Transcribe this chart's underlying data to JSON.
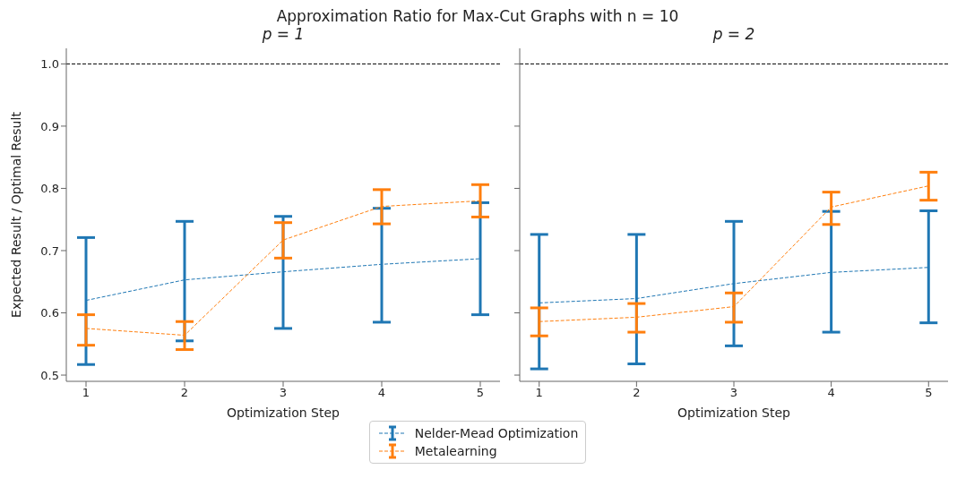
{
  "chart_data": [
    {
      "type": "line",
      "title": "p = 1",
      "xlabel": "Optimization Step",
      "ylabel": "Expected Result / Optimal Result",
      "annotations": [
        "Approximation Ratio for Max-Cut Graphs with n = 10"
      ],
      "categories": [
        "1",
        "2",
        "3",
        "4",
        "5"
      ],
      "ylim": [
        0.49,
        1.025
      ],
      "yticks": [
        0.5,
        0.6,
        0.7,
        0.8,
        0.9,
        {
          "value": 1.0,
          "label": "1.0"
        }
      ],
      "grid": false,
      "legend": "bottom",
      "marker": "none",
      "line_style": "dashed",
      "ref_lines": [
        {
          "axis": "y",
          "value": 1.0,
          "color": "#000000",
          "line_style": "dashed"
        }
      ],
      "series": [
        {
          "name": "Nelder-Mead Optimization",
          "color": "#1f77b4",
          "values": [
            0.62,
            0.653,
            0.666,
            0.678,
            0.687
          ],
          "errors": [
            [
              0.517,
              0.721
            ],
            [
              0.555,
              0.747
            ],
            [
              0.575,
              0.755
            ],
            [
              0.585,
              0.768
            ],
            [
              0.597,
              0.777
            ]
          ]
        },
        {
          "name": "Metalearning",
          "color": "#ff7f0e",
          "values": [
            0.575,
            0.564,
            0.717,
            0.771,
            0.78
          ],
          "errors": [
            [
              0.548,
              0.597
            ],
            [
              0.541,
              0.586
            ],
            [
              0.688,
              0.745
            ],
            [
              0.743,
              0.798
            ],
            [
              0.754,
              0.806
            ]
          ]
        }
      ]
    },
    {
      "type": "line",
      "title": "p = 2",
      "xlabel": "Optimization Step",
      "categories": [
        "1",
        "2",
        "3",
        "4",
        "5"
      ],
      "ylim": [
        0.49,
        1.025
      ],
      "yticks": [
        0.5,
        0.6,
        0.7,
        0.8,
        0.9,
        {
          "value": 1.0,
          "label": null
        }
      ],
      "tick_labels": "x",
      "grid": false,
      "marker": "none",
      "line_style": "dashed",
      "ref_lines": [
        {
          "axis": "y",
          "value": 1.0,
          "color": "#000000",
          "line_style": "dashed"
        }
      ],
      "series": [
        {
          "color": "#1f77b4",
          "values": [
            0.616,
            0.623,
            0.647,
            0.665,
            0.673
          ],
          "errors": [
            [
              0.51,
              0.726
            ],
            [
              0.518,
              0.726
            ],
            [
              0.547,
              0.747
            ],
            [
              0.569,
              0.763
            ],
            [
              0.584,
              0.764
            ]
          ]
        },
        {
          "color": "#ff7f0e",
          "values": [
            0.586,
            0.593,
            0.61,
            0.77,
            0.804
          ],
          "errors": [
            [
              0.563,
              0.608
            ],
            [
              0.569,
              0.615
            ],
            [
              0.585,
              0.632
            ],
            [
              0.742,
              0.794
            ],
            [
              0.781,
              0.826
            ]
          ]
        }
      ]
    }
  ]
}
